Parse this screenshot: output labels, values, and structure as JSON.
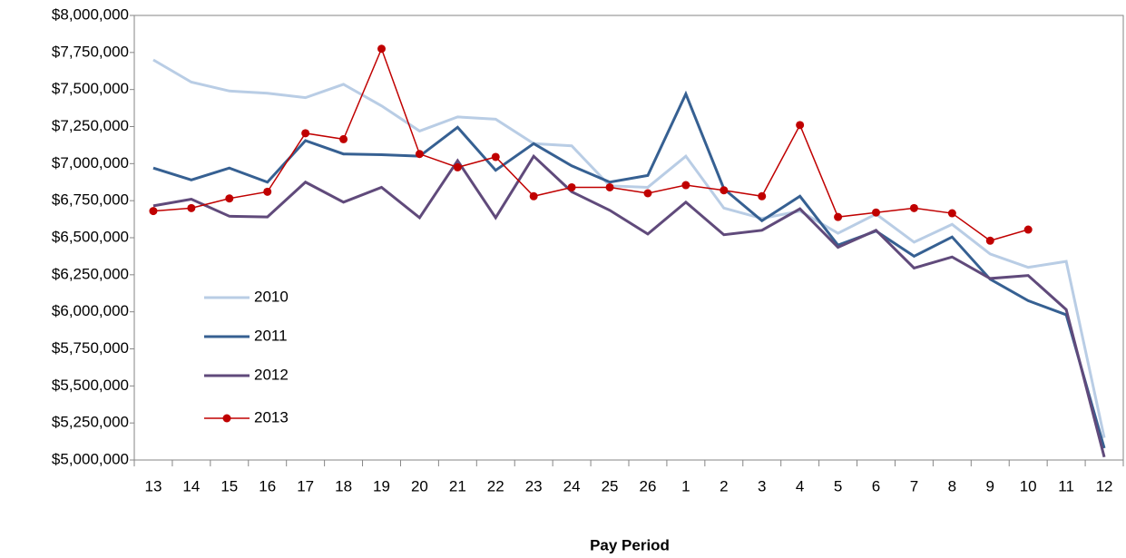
{
  "chart_data": {
    "type": "line",
    "x_label": "Pay Period",
    "categories": [
      "13",
      "14",
      "15",
      "16",
      "17",
      "18",
      "19",
      "20",
      "21",
      "22",
      "23",
      "24",
      "25",
      "26",
      "1",
      "2",
      "3",
      "4",
      "5",
      "6",
      "7",
      "8",
      "9",
      "10",
      "11",
      "12"
    ],
    "series": [
      {
        "name": "2010",
        "color": "#b9cde5",
        "marker": false,
        "values": [
          7700000,
          7550000,
          7490000,
          7475000,
          7445000,
          7535000,
          7390000,
          7220000,
          7315000,
          7300000,
          7135000,
          7120000,
          6850000,
          6840000,
          7050000,
          6700000,
          6630000,
          6680000,
          6530000,
          6660000,
          6470000,
          6590000,
          6390000,
          6300000,
          6340000,
          5150000
        ]
      },
      {
        "name": "2011",
        "color": "#366092",
        "marker": false,
        "values": [
          6970000,
          6890000,
          6970000,
          6875000,
          7155000,
          7065000,
          7060000,
          7050000,
          7245000,
          6955000,
          7135000,
          6985000,
          6875000,
          6920000,
          7470000,
          6830000,
          6615000,
          6780000,
          6450000,
          6545000,
          6375000,
          6505000,
          6220000,
          6075000,
          5980000,
          5080000
        ]
      },
      {
        "name": "2012",
        "color": "#604a7b",
        "marker": false,
        "values": [
          6715000,
          6760000,
          6645000,
          6640000,
          6875000,
          6740000,
          6840000,
          6635000,
          7020000,
          6635000,
          7050000,
          6810000,
          6685000,
          6525000,
          6740000,
          6520000,
          6550000,
          6695000,
          6435000,
          6550000,
          6295000,
          6370000,
          6225000,
          6245000,
          6015000,
          5020000
        ]
      },
      {
        "name": "2013",
        "color": "#c00000",
        "marker": true,
        "values": [
          6680000,
          6700000,
          6765000,
          6810000,
          7205000,
          7165000,
          7775000,
          7065000,
          6975000,
          7045000,
          6780000,
          6840000,
          6840000,
          6800000,
          6855000,
          6820000,
          6780000,
          7260000,
          6640000,
          6670000,
          6700000,
          6665000,
          6480000,
          6555000,
          null,
          null
        ]
      }
    ],
    "ylim": [
      5000000,
      8000000
    ],
    "yticks": [
      {
        "value": 5000000,
        "label": "$5,000,000"
      },
      {
        "value": 5250000,
        "label": "$5,250,000"
      },
      {
        "value": 5500000,
        "label": "$5,500,000"
      },
      {
        "value": 5750000,
        "label": "$5,750,000"
      },
      {
        "value": 6000000,
        "label": "$6,000,000"
      },
      {
        "value": 6250000,
        "label": "$6,250,000"
      },
      {
        "value": 6500000,
        "label": "$6,500,000"
      },
      {
        "value": 6750000,
        "label": "$6,750,000"
      },
      {
        "value": 7000000,
        "label": "$7,000,000"
      },
      {
        "value": 7250000,
        "label": "$7,250,000"
      },
      {
        "value": 7500000,
        "label": "$7,500,000"
      },
      {
        "value": 7750000,
        "label": "$7,750,000"
      },
      {
        "value": 8000000,
        "label": "$8,000,000"
      }
    ],
    "grid": false,
    "legend": "lower left"
  }
}
